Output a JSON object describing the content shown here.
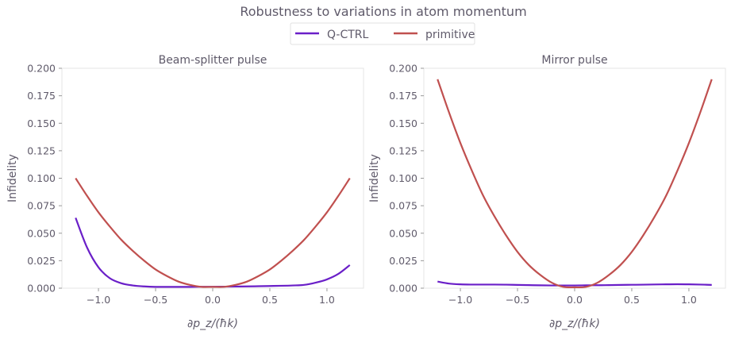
{
  "chart_data": {
    "type": "line",
    "title": "Robustness to variations in atom momentum",
    "legend": {
      "placement": "top-center",
      "entries": [
        "Q-CTRL",
        "primitive"
      ]
    },
    "colors": {
      "Q-CTRL": "#6a1fc8",
      "primitive": "#c0504f"
    },
    "panels": [
      {
        "title": "Beam-splitter pulse",
        "xlabel": "∂p_z/(ħk)",
        "ylabel": "Infidelity",
        "xlim": [
          -1.32,
          1.32
        ],
        "ylim": [
          0,
          0.2
        ],
        "xticks": [
          -1.0,
          -0.5,
          0.0,
          0.5,
          1.0
        ],
        "xtick_labels": [
          "−1.0",
          "−0.5",
          "0.0",
          "0.5",
          "1.0"
        ],
        "yticks": [
          0,
          0.025,
          0.05,
          0.075,
          0.1,
          0.125,
          0.15,
          0.175,
          0.2
        ],
        "ytick_labels": [
          "0.000",
          "0.025",
          "0.050",
          "0.075",
          "0.100",
          "0.125",
          "0.150",
          "0.175",
          "0.200"
        ],
        "x": [
          -1.2,
          -1.1,
          -1.0,
          -0.9,
          -0.8,
          -0.7,
          -0.6,
          -0.5,
          -0.4,
          -0.3,
          -0.2,
          -0.1,
          0,
          0.1,
          0.2,
          0.3,
          0.4,
          0.5,
          0.6,
          0.7,
          0.8,
          0.9,
          1.0,
          1.1,
          1.2
        ],
        "series": [
          {
            "name": "Q-CTRL",
            "values": [
              0.064,
              0.037,
              0.019,
              0.009,
              0.0045,
              0.0025,
              0.0016,
              0.0012,
              0.0012,
              0.0012,
              0.0012,
              0.0013,
              0.0013,
              0.0014,
              0.0015,
              0.0016,
              0.0018,
              0.002,
              0.0022,
              0.0025,
              0.003,
              0.005,
              0.008,
              0.013,
              0.021
            ]
          },
          {
            "name": "primitive",
            "values": [
              0.1,
              0.084,
              0.069,
              0.056,
              0.044,
              0.034,
              0.025,
              0.017,
              0.011,
              0.006,
              0.003,
              0.0012,
              0.0012,
              0.0012,
              0.003,
              0.006,
              0.011,
              0.017,
              0.025,
              0.034,
              0.044,
              0.056,
              0.069,
              0.084,
              0.1
            ]
          }
        ]
      },
      {
        "title": "Mirror pulse",
        "xlabel": "∂p_z/(ħk)",
        "ylabel": "Infidelity",
        "xlim": [
          -1.32,
          1.32
        ],
        "ylim": [
          0,
          0.2
        ],
        "xticks": [
          -1.0,
          -0.5,
          0.0,
          0.5,
          1.0
        ],
        "xtick_labels": [
          "−1.0",
          "−0.5",
          "0.0",
          "0.5",
          "1.0"
        ],
        "yticks": [
          0,
          0.025,
          0.05,
          0.075,
          0.1,
          0.125,
          0.15,
          0.175,
          0.2
        ],
        "ytick_labels": [
          "0.000",
          "0.025",
          "0.050",
          "0.075",
          "0.100",
          "0.125",
          "0.150",
          "0.175",
          "0.200"
        ],
        "x": [
          -1.2,
          -1.1,
          -1.0,
          -0.9,
          -0.8,
          -0.7,
          -0.6,
          -0.5,
          -0.4,
          -0.3,
          -0.2,
          -0.1,
          0,
          0.1,
          0.2,
          0.3,
          0.4,
          0.5,
          0.6,
          0.7,
          0.8,
          0.9,
          1.0,
          1.1,
          1.2
        ],
        "series": [
          {
            "name": "Q-CTRL",
            "values": [
              0.006,
              0.0042,
              0.0035,
              0.0033,
              0.0033,
              0.0033,
              0.0032,
              0.003,
              0.0028,
              0.0026,
              0.0025,
              0.0025,
              0.0025,
              0.0026,
              0.0027,
              0.0028,
              0.003,
              0.0031,
              0.0032,
              0.0034,
              0.0035,
              0.0036,
              0.0035,
              0.0033,
              0.003
            ]
          },
          {
            "name": "primitive",
            "values": [
              0.19,
              0.16,
              0.132,
              0.107,
              0.084,
              0.065,
              0.048,
              0.033,
              0.021,
              0.012,
              0.005,
              0.0012,
              0.0008,
              0.0012,
              0.005,
              0.012,
              0.021,
              0.033,
              0.048,
              0.065,
              0.084,
              0.107,
              0.132,
              0.16,
              0.19
            ]
          }
        ]
      }
    ]
  }
}
